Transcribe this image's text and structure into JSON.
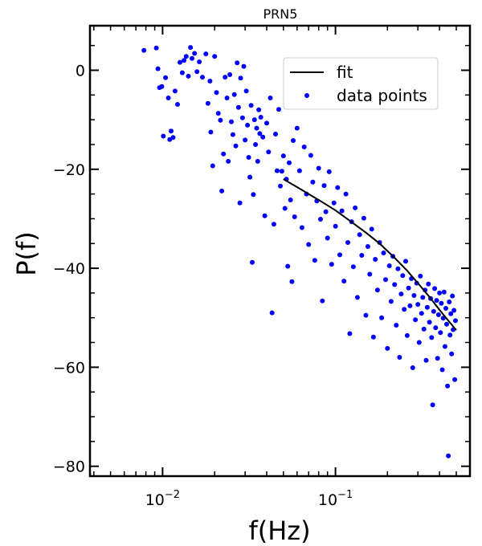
{
  "chart_data": {
    "type": "scatter",
    "title": "PRN5",
    "xlabel": "f(Hz)",
    "ylabel": "P(f)",
    "x_scale": "log",
    "xlim": [
      0.0038,
      0.6
    ],
    "ylim": [
      -82,
      9
    ],
    "x_ticks": [
      {
        "value": 0.01,
        "base": "10",
        "exp": "−2"
      },
      {
        "value": 0.1,
        "base": "10",
        "exp": "−1"
      }
    ],
    "y_ticks": [
      0,
      -20,
      -40,
      -60,
      -80
    ],
    "y_tick_labels": [
      "0",
      "−20",
      "−40",
      "−60",
      "−80"
    ],
    "grid": false,
    "legend": {
      "position": "top-right",
      "entries": [
        "fit",
        "data points"
      ]
    },
    "colors": {
      "points": "#0000ff",
      "fit": "#000000"
    },
    "series": [
      {
        "name": "data points",
        "kind": "scatter",
        "points": [
          [
            0.0078,
            4.0
          ],
          [
            0.0092,
            4.5
          ],
          [
            0.0094,
            0.3
          ],
          [
            0.0096,
            -3.5
          ],
          [
            0.0099,
            -3.3
          ],
          [
            0.0101,
            -13.3
          ],
          [
            0.0104,
            -1.5
          ],
          [
            0.0108,
            -5.6
          ],
          [
            0.011,
            -14.0
          ],
          [
            0.0112,
            -12.3
          ],
          [
            0.0115,
            -13.6
          ],
          [
            0.0118,
            -4.2
          ],
          [
            0.0122,
            -6.9
          ],
          [
            0.0126,
            1.6
          ],
          [
            0.013,
            -0.5
          ],
          [
            0.0133,
            2.0
          ],
          [
            0.0137,
            2.8
          ],
          [
            0.0141,
            -1.2
          ],
          [
            0.0145,
            4.6
          ],
          [
            0.0148,
            2.4
          ],
          [
            0.0153,
            3.4
          ],
          [
            0.0158,
            -0.3
          ],
          [
            0.0163,
            1.7
          ],
          [
            0.017,
            -1.4
          ],
          [
            0.0178,
            3.3
          ],
          [
            0.0183,
            -6.7
          ],
          [
            0.0188,
            -2.2
          ],
          [
            0.019,
            -12.5
          ],
          [
            0.0195,
            -19.3
          ],
          [
            0.02,
            2.8
          ],
          [
            0.0205,
            -4.5
          ],
          [
            0.021,
            -8.7
          ],
          [
            0.0216,
            -10.1
          ],
          [
            0.022,
            -24.4
          ],
          [
            0.0225,
            -16.9
          ],
          [
            0.023,
            -1.4
          ],
          [
            0.0236,
            -5.6
          ],
          [
            0.024,
            -18.4
          ],
          [
            0.0245,
            -0.9
          ],
          [
            0.025,
            -10.4
          ],
          [
            0.0255,
            -13.0
          ],
          [
            0.026,
            -4.9
          ],
          [
            0.0265,
            -15.3
          ],
          [
            0.027,
            1.5
          ],
          [
            0.0275,
            -7.5
          ],
          [
            0.028,
            -26.8
          ],
          [
            0.0283,
            -1.6
          ],
          [
            0.029,
            -9.6
          ],
          [
            0.0295,
            0.8
          ],
          [
            0.03,
            -14.1
          ],
          [
            0.0305,
            -4.2
          ],
          [
            0.031,
            -11.1
          ],
          [
            0.0315,
            -17.6
          ],
          [
            0.032,
            -21.6
          ],
          [
            0.0325,
            -7.1
          ],
          [
            0.033,
            -38.8
          ],
          [
            0.0335,
            -25.1
          ],
          [
            0.034,
            -10.0
          ],
          [
            0.0345,
            -15.0
          ],
          [
            0.035,
            -11.7
          ],
          [
            0.0355,
            -18.4
          ],
          [
            0.036,
            -8.0
          ],
          [
            0.0365,
            -12.8
          ],
          [
            0.037,
            -9.5
          ],
          [
            0.038,
            -13.5
          ],
          [
            0.039,
            -29.4
          ],
          [
            0.04,
            -10.7
          ],
          [
            0.041,
            -16.5
          ],
          [
            0.042,
            -5.6
          ],
          [
            0.043,
            -49.0
          ],
          [
            0.044,
            -31.1
          ],
          [
            0.045,
            -12.9
          ],
          [
            0.046,
            -20.3
          ],
          [
            0.047,
            -7.9
          ],
          [
            0.048,
            -23.4
          ],
          [
            0.049,
            -20.4
          ],
          [
            0.05,
            -17.3
          ],
          [
            0.051,
            -27.9
          ],
          [
            0.052,
            -22.0
          ],
          [
            0.053,
            -39.6
          ],
          [
            0.054,
            -18.7
          ],
          [
            0.055,
            -26.2
          ],
          [
            0.056,
            -42.7
          ],
          [
            0.057,
            -14.2
          ],
          [
            0.058,
            -29.6
          ],
          [
            0.06,
            -11.7
          ],
          [
            0.062,
            -20.3
          ],
          [
            0.064,
            -31.8
          ],
          [
            0.066,
            -15.5
          ],
          [
            0.068,
            -25.0
          ],
          [
            0.07,
            -35.2
          ],
          [
            0.072,
            -17.2
          ],
          [
            0.074,
            -22.6
          ],
          [
            0.076,
            -38.4
          ],
          [
            0.078,
            -26.4
          ],
          [
            0.08,
            -19.8
          ],
          [
            0.082,
            -30.1
          ],
          [
            0.084,
            -46.6
          ],
          [
            0.086,
            -23.3
          ],
          [
            0.088,
            -28.6
          ],
          [
            0.09,
            -33.9
          ],
          [
            0.092,
            -20.5
          ],
          [
            0.095,
            -39.2
          ],
          [
            0.098,
            -26.8
          ],
          [
            0.1,
            -31.5
          ],
          [
            0.103,
            -23.7
          ],
          [
            0.106,
            -37.3
          ],
          [
            0.109,
            -28.4
          ],
          [
            0.112,
            -42.6
          ],
          [
            0.115,
            -25.0
          ],
          [
            0.118,
            -34.8
          ],
          [
            0.121,
            -53.2
          ],
          [
            0.124,
            -30.6
          ],
          [
            0.127,
            -39.7
          ],
          [
            0.13,
            -27.8
          ],
          [
            0.134,
            -45.9
          ],
          [
            0.138,
            -33.2
          ],
          [
            0.142,
            -37.4
          ],
          [
            0.146,
            -29.9
          ],
          [
            0.15,
            -49.5
          ],
          [
            0.154,
            -35.6
          ],
          [
            0.158,
            -41.2
          ],
          [
            0.162,
            -32.1
          ],
          [
            0.166,
            -53.9
          ],
          [
            0.17,
            -38.2
          ],
          [
            0.175,
            -44.4
          ],
          [
            0.18,
            -34.8
          ],
          [
            0.185,
            -50.0
          ],
          [
            0.19,
            -36.9
          ],
          [
            0.195,
            -42.3
          ],
          [
            0.2,
            -56.2
          ],
          [
            0.205,
            -39.5
          ],
          [
            0.21,
            -46.7
          ],
          [
            0.215,
            -37.6
          ],
          [
            0.22,
            -43.3
          ],
          [
            0.225,
            -51.5
          ],
          [
            0.23,
            -40.1
          ],
          [
            0.235,
            -58.0
          ],
          [
            0.24,
            -45.2
          ],
          [
            0.245,
            -41.5
          ],
          [
            0.25,
            -48.3
          ],
          [
            0.255,
            -38.6
          ],
          [
            0.26,
            -53.6
          ],
          [
            0.265,
            -44.0
          ],
          [
            0.27,
            -47.6
          ],
          [
            0.275,
            -42.1
          ],
          [
            0.28,
            -60.1
          ],
          [
            0.285,
            -45.5
          ],
          [
            0.29,
            -50.4
          ],
          [
            0.295,
            -43.0
          ],
          [
            0.3,
            -47.3
          ],
          [
            0.305,
            -55.0
          ],
          [
            0.31,
            -41.6
          ],
          [
            0.315,
            -49.1
          ],
          [
            0.32,
            -45.9
          ],
          [
            0.325,
            -52.3
          ],
          [
            0.33,
            -44.4
          ],
          [
            0.335,
            -58.6
          ],
          [
            0.34,
            -47.9
          ],
          [
            0.345,
            -43.2
          ],
          [
            0.35,
            -50.9
          ],
          [
            0.355,
            -46.1
          ],
          [
            0.36,
            -54.0
          ],
          [
            0.365,
            -67.6
          ],
          [
            0.37,
            -48.7
          ],
          [
            0.375,
            -44.1
          ],
          [
            0.38,
            -52.0
          ],
          [
            0.385,
            -46.5
          ],
          [
            0.39,
            -58.2
          ],
          [
            0.395,
            -49.4
          ],
          [
            0.4,
            -45.0
          ],
          [
            0.405,
            -53.0
          ],
          [
            0.41,
            -47.1
          ],
          [
            0.415,
            -60.5
          ],
          [
            0.42,
            -50.1
          ],
          [
            0.425,
            -44.8
          ],
          [
            0.43,
            -55.8
          ],
          [
            0.435,
            -48.1
          ],
          [
            0.44,
            -51.3
          ],
          [
            0.445,
            -63.8
          ],
          [
            0.45,
            -77.9
          ],
          [
            0.455,
            -46.8
          ],
          [
            0.46,
            -53.5
          ],
          [
            0.465,
            -49.2
          ],
          [
            0.47,
            -57.3
          ],
          [
            0.475,
            -45.6
          ],
          [
            0.48,
            -52.4
          ],
          [
            0.485,
            -48.5
          ],
          [
            0.49,
            -62.5
          ],
          [
            0.495,
            -50.6
          ]
        ]
      },
      {
        "name": "fit",
        "kind": "line",
        "points": [
          [
            0.05,
            -22.0
          ],
          [
            0.06,
            -23.6
          ],
          [
            0.07,
            -25.0
          ],
          [
            0.08,
            -26.2
          ],
          [
            0.1,
            -28.3
          ],
          [
            0.12,
            -30.3
          ],
          [
            0.15,
            -32.8
          ],
          [
            0.18,
            -35.0
          ],
          [
            0.22,
            -37.9
          ],
          [
            0.26,
            -40.5
          ],
          [
            0.3,
            -43.0
          ],
          [
            0.35,
            -45.8
          ],
          [
            0.4,
            -48.4
          ],
          [
            0.45,
            -50.6
          ],
          [
            0.5,
            -52.5
          ]
        ]
      }
    ]
  }
}
